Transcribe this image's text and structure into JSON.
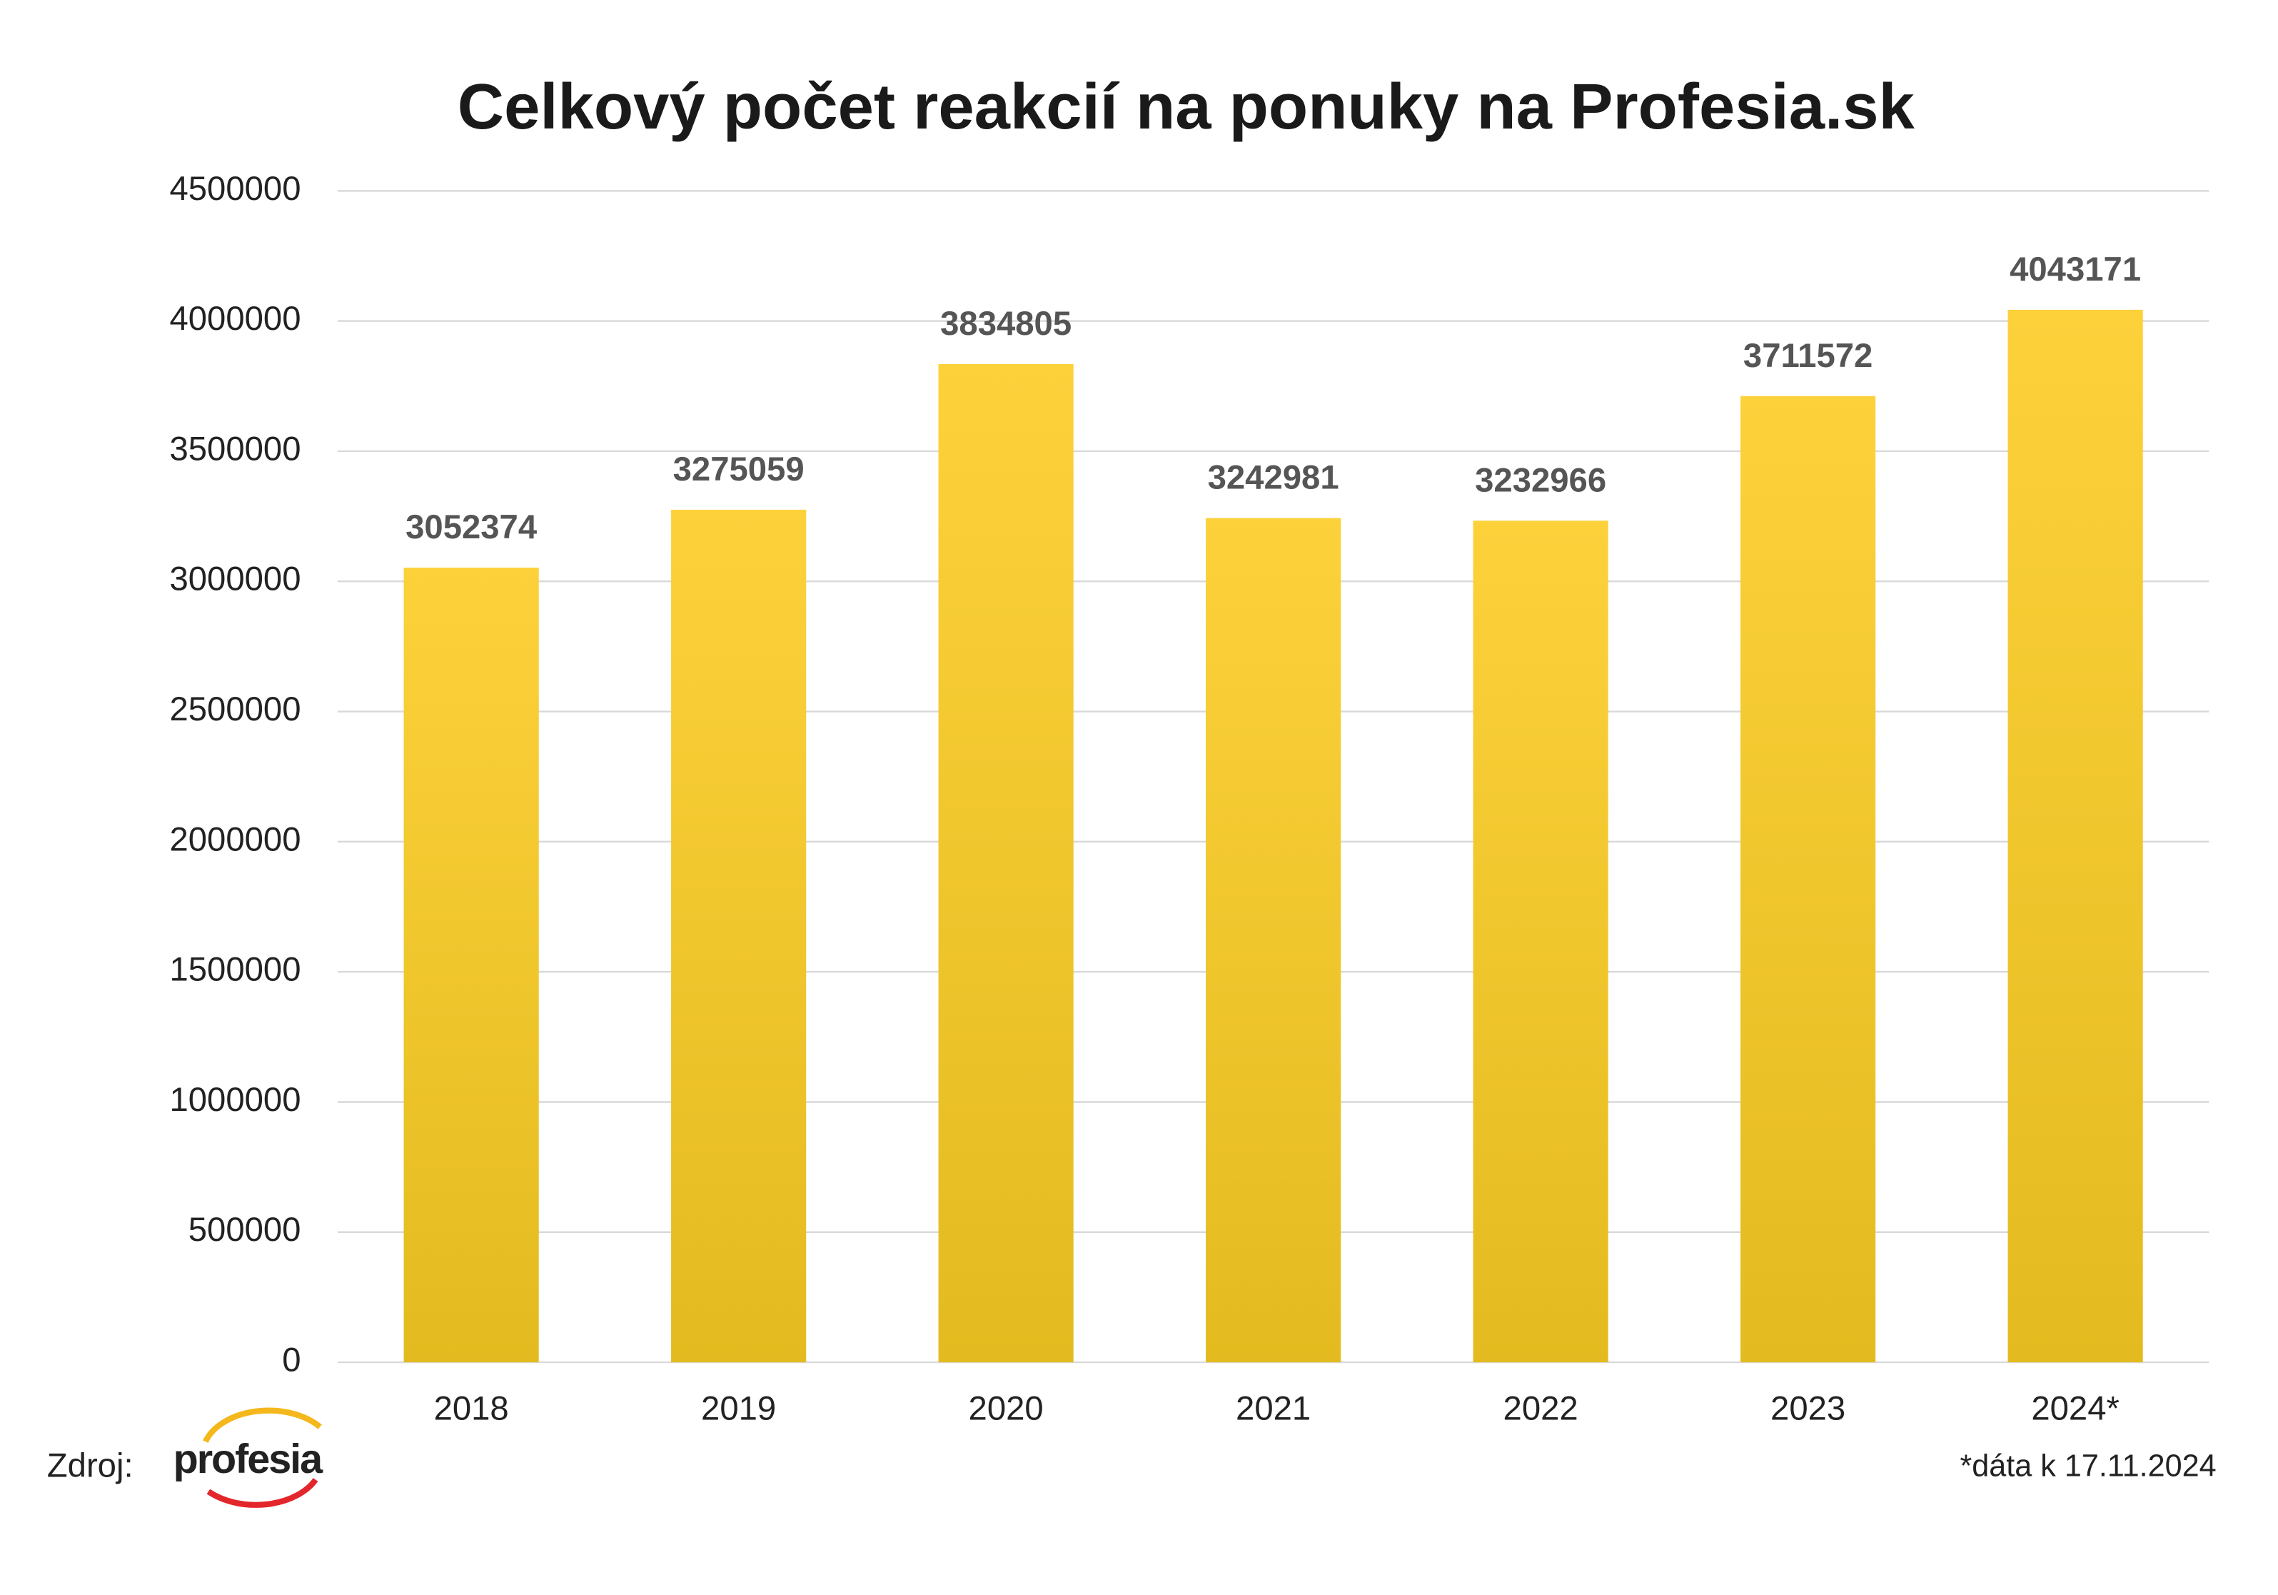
{
  "chart_data": {
    "type": "bar",
    "title": "Celkový počet reakcií na ponuky na Profesia.sk",
    "categories": [
      "2018",
      "2019",
      "2020",
      "2021",
      "2022",
      "2023",
      "2024*"
    ],
    "values": [
      3052374,
      3275059,
      3834805,
      3242981,
      3232966,
      3711572,
      4043171
    ],
    "color": "#fdd13a",
    "color_bottom": "#e3bb20",
    "ylim": [
      0,
      4500000
    ],
    "yticks": [
      0,
      500000,
      1000000,
      1500000,
      2000000,
      2500000,
      3000000,
      3500000,
      4000000,
      4500000
    ],
    "grid": true,
    "source_label": "Zdroj:",
    "logo_text": "profesia",
    "note": "*dáta k 17.11.2024"
  }
}
